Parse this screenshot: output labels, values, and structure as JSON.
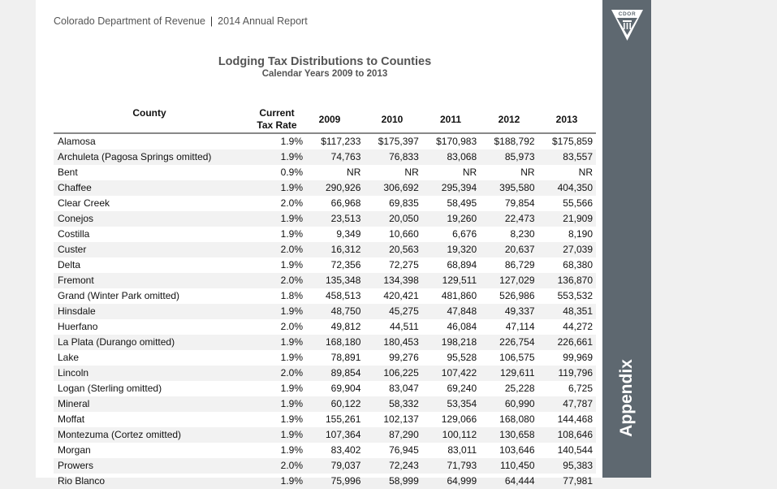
{
  "header": {
    "department": "Colorado Department of Revenue",
    "report": "2014 Annual Report"
  },
  "side": {
    "logo_text": "CDOR",
    "section_label": "Appendix",
    "bar_color": "#5e6870"
  },
  "title": "Lodging Tax Distributions to Counties",
  "subtitle": "Calendar Years 2009 to 2013",
  "columns": {
    "county": "County",
    "rate_line1": "Current",
    "rate_line2": "Tax Rate",
    "y2009": "2009",
    "y2010": "2010",
    "y2011": "2011",
    "y2012": "2012",
    "y2013": "2013"
  },
  "rows": [
    [
      "Alamosa",
      "1.9%",
      "$117,233",
      "$175,397",
      "$170,983",
      "$188,792",
      "$175,859"
    ],
    [
      "Archuleta (Pagosa Springs omitted)",
      "1.9%",
      "74,763",
      "76,833",
      "83,068",
      "85,973",
      "83,557"
    ],
    [
      "Bent",
      "0.9%",
      "NR",
      "NR",
      "NR",
      "NR",
      "NR"
    ],
    [
      "Chaffee",
      "1.9%",
      "290,926",
      "306,692",
      "295,394",
      "395,580",
      "404,350"
    ],
    [
      "Clear Creek",
      "2.0%",
      "66,968",
      "69,835",
      "58,495",
      "79,854",
      "55,566"
    ],
    [
      "Conejos",
      "1.9%",
      "23,513",
      "20,050",
      "19,260",
      "22,473",
      "21,909"
    ],
    [
      "Costilla",
      "1.9%",
      "9,349",
      "10,660",
      "6,676",
      "8,230",
      "8,190"
    ],
    [
      "Custer",
      "2.0%",
      "16,312",
      "20,563",
      "19,320",
      "20,637",
      "27,039"
    ],
    [
      "Delta",
      "1.9%",
      "72,356",
      "72,275",
      "68,894",
      "86,729",
      "68,380"
    ],
    [
      "Fremont",
      "2.0%",
      "135,348",
      "134,398",
      "129,511",
      "127,029",
      "136,870"
    ],
    [
      "Grand (Winter Park omitted)",
      "1.8%",
      "458,513",
      "420,421",
      "481,860",
      "526,986",
      "553,532"
    ],
    [
      "Hinsdale",
      "1.9%",
      "48,750",
      "45,275",
      "47,848",
      "49,337",
      "48,351"
    ],
    [
      "Huerfano",
      "2.0%",
      "49,812",
      "44,511",
      "46,084",
      "47,114",
      "44,272"
    ],
    [
      "La Plata (Durango omitted)",
      "1.9%",
      "168,180",
      "180,453",
      "198,218",
      "226,754",
      "226,661"
    ],
    [
      "Lake",
      "1.9%",
      "78,891",
      "99,276",
      "95,528",
      "106,575",
      "99,969"
    ],
    [
      "Lincoln",
      "2.0%",
      "89,854",
      "106,225",
      "107,422",
      "129,611",
      "119,796"
    ],
    [
      "Logan (Sterling omitted)",
      "1.9%",
      "69,904",
      "83,047",
      "69,240",
      "25,228",
      "6,725"
    ],
    [
      "Mineral",
      "1.9%",
      "60,122",
      "58,332",
      "53,354",
      "60,990",
      "47,787"
    ],
    [
      "Moffat",
      "1.9%",
      "155,261",
      "102,137",
      "129,066",
      "168,080",
      "144,468"
    ],
    [
      "Montezuma (Cortez omitted)",
      "1.9%",
      "107,364",
      "87,290",
      "100,112",
      "130,658",
      "108,646"
    ],
    [
      "Morgan",
      "1.9%",
      "83,402",
      "76,945",
      "83,011",
      "103,646",
      "140,544"
    ],
    [
      "Prowers",
      "2.0%",
      "79,037",
      "72,243",
      "71,793",
      "110,450",
      "95,383"
    ],
    [
      "Rio Blanco",
      "1.9%",
      "75,996",
      "58,999",
      "64,999",
      "64,444",
      "77,981"
    ]
  ]
}
